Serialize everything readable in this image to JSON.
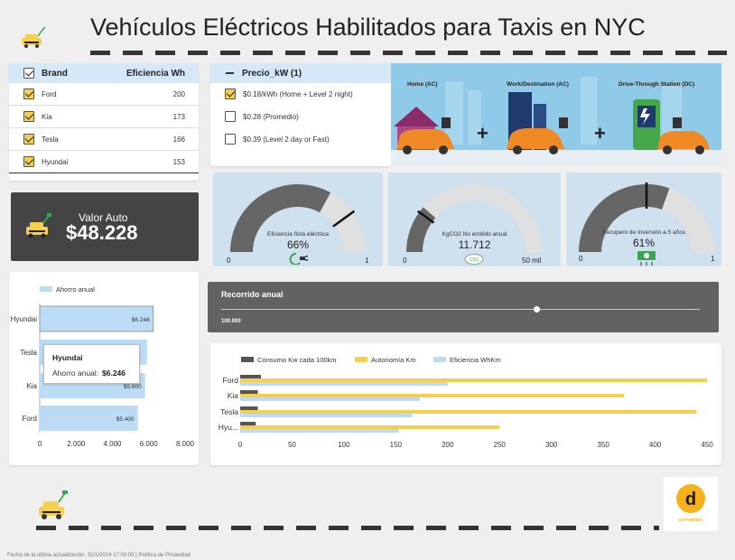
{
  "title": "Vehículos Eléctricos Habilitados para Taxis en NYC",
  "brand_table": {
    "col_brand": "Brand",
    "col_eff": "Eficiencia Wh",
    "rows": [
      {
        "name": "Ford",
        "value": "200"
      },
      {
        "name": "Kia",
        "value": "173"
      },
      {
        "name": "Tesla",
        "value": "166"
      },
      {
        "name": "Hyundai",
        "value": "153"
      }
    ]
  },
  "price_filter": {
    "header": "Precio_kW (1)",
    "options": [
      {
        "label": "$0.18/kWh (Home + Level 2 night)",
        "checked": true
      },
      {
        "label": "$0.28 (Promedio)",
        "checked": false
      },
      {
        "label": "$0.39 (Level 2 day or Fast)",
        "checked": false
      }
    ]
  },
  "illustration": {
    "labels": [
      "Home (AC)",
      "Work/Destination (AC)",
      "Drive-Through Station (DC)"
    ]
  },
  "valor_auto": {
    "label": "Valor Auto",
    "value": "$48.228"
  },
  "gauges": [
    {
      "label": "Eficiencia flota eléctrica",
      "value": "66%",
      "fraction": 0.66,
      "target": 0.8,
      "min": "0",
      "max": "1"
    },
    {
      "label": "KgCO2 No emitido anual",
      "value": "11.712",
      "fraction": 0.23,
      "target": 0.2,
      "min": "0",
      "max": "50 mil"
    },
    {
      "label": "Recupero de Inversión a 5 años",
      "value": "61%",
      "fraction": 0.61,
      "target": 0.5,
      "min": "0",
      "max": "1"
    }
  ],
  "recorrido": {
    "label": "Recorrido anual",
    "value": "100.000",
    "fraction": 0.66
  },
  "tooltip": {
    "title": "Hyundai",
    "label": "Ahorro anual:",
    "value": "$6.246"
  },
  "chart_data": [
    {
      "type": "bar",
      "orientation": "horizontal",
      "legend": [
        "Ahorro anual"
      ],
      "categories": [
        "Hyundai",
        "Tesla",
        "Kia",
        "Ford"
      ],
      "series": [
        {
          "name": "Ahorro anual",
          "values": [
            6246,
            5900,
            5800,
            5400
          ],
          "labels": [
            "$6.246",
            "",
            "$5.800",
            "$5.400"
          ]
        }
      ],
      "xlim": [
        0,
        8000
      ],
      "xticks": [
        "0",
        "2.000",
        "4.000",
        "6.000",
        "8.000"
      ],
      "color": "#bcdcf5"
    },
    {
      "type": "bar",
      "orientation": "horizontal",
      "categories": [
        "Ford",
        "Kia",
        "Tesla",
        "Hyu..."
      ],
      "series": [
        {
          "name": "Consumo Kw cada 100km",
          "values": [
            20,
            17,
            17,
            15
          ],
          "color": "#555555"
        },
        {
          "name": "Autonomía Km",
          "values": [
            450,
            370,
            440,
            250
          ],
          "color": "#f6cf4f"
        },
        {
          "name": "Eficiencia WhKm",
          "values": [
            200,
            173,
            166,
            153
          ],
          "color": "#bcdcf5"
        }
      ],
      "xlim": [
        0,
        460
      ],
      "xticks": [
        "0",
        "50",
        "100",
        "150",
        "200",
        "250",
        "300",
        "350",
        "400",
        "450"
      ]
    }
  ],
  "logo": {
    "text": "DATAMINDS"
  },
  "footer": "Fecha de la última actualización: 31/1/2024 17:00:00  |  Política de Privacidad"
}
